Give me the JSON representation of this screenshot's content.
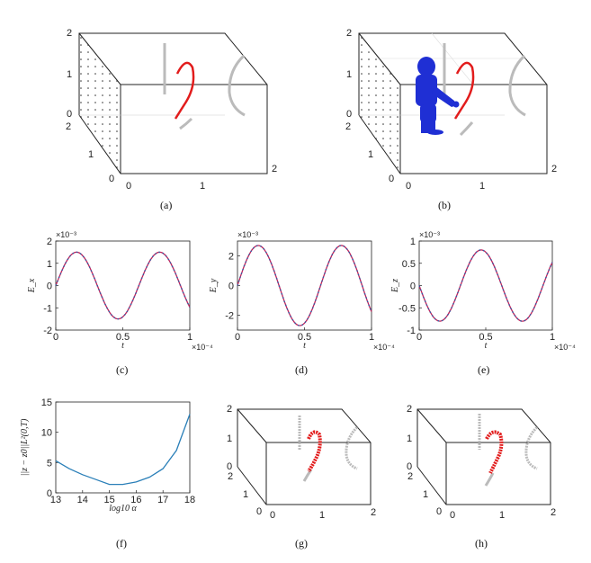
{
  "captions": [
    "(a)",
    "(b)",
    "(c)",
    "(d)",
    "(e)",
    "(f)",
    "(g)",
    "(h)"
  ],
  "box3d_ticks": {
    "z": [
      "0",
      "1",
      "2"
    ],
    "y": [
      "0",
      "1",
      "2"
    ],
    "x": [
      "0",
      "1",
      "2"
    ]
  },
  "chart_data": [
    {
      "id": "c",
      "type": "line",
      "ylabel": "E_x",
      "xlabel": "t",
      "x_exponent": "×10⁻⁴",
      "y_exponent": "×10⁻³",
      "xticks": [
        "0",
        "0.5",
        "1"
      ],
      "yticks": [
        "-2",
        "-1",
        "0",
        "1",
        "2"
      ],
      "xlim": [
        0,
        1
      ],
      "ylim": [
        -2,
        2
      ],
      "amplitude": 1.5,
      "period": 0.62,
      "phase": 0,
      "series": [
        {
          "color": "#2b5fa8",
          "style": "dotted"
        },
        {
          "color": "#c0245c",
          "style": "solid"
        }
      ]
    },
    {
      "id": "d",
      "type": "line",
      "ylabel": "E_y",
      "xlabel": "t",
      "x_exponent": "×10⁻⁴",
      "y_exponent": "×10⁻³",
      "xticks": [
        "0",
        "0.5",
        "1"
      ],
      "yticks": [
        "-2",
        "0",
        "2"
      ],
      "xlim": [
        0,
        1
      ],
      "ylim": [
        -3,
        3
      ],
      "amplitude": 2.7,
      "period": 0.62,
      "phase": 0,
      "series": [
        {
          "color": "#2b5fa8",
          "style": "dotted"
        },
        {
          "color": "#c0245c",
          "style": "solid"
        }
      ]
    },
    {
      "id": "e",
      "type": "line",
      "ylabel": "E_z",
      "xlabel": "t",
      "x_exponent": "×10⁻⁴",
      "y_exponent": "×10⁻³",
      "xticks": [
        "0",
        "0.5",
        "1"
      ],
      "yticks": [
        "-1",
        "-0.5",
        "0",
        "0.5",
        "1"
      ],
      "xlim": [
        0,
        1
      ],
      "ylim": [
        -1,
        1
      ],
      "amplitude": 0.8,
      "period": 0.62,
      "phase": 3.14159,
      "series": [
        {
          "color": "#2b5fa8",
          "style": "dotted"
        },
        {
          "color": "#c0245c",
          "style": "solid"
        }
      ]
    },
    {
      "id": "f",
      "type": "line",
      "ylabel": "||z − z0||L²(0,T)",
      "xlabel": "log10 α",
      "xticks": [
        "13",
        "14",
        "15",
        "16",
        "17",
        "18"
      ],
      "yticks": [
        "0",
        "5",
        "10",
        "15"
      ],
      "xlim": [
        13,
        18
      ],
      "ylim": [
        0,
        15
      ],
      "x": [
        13,
        13.5,
        14,
        14.5,
        15,
        15.5,
        16,
        16.5,
        17,
        17.5,
        18
      ],
      "y": [
        5.3,
        4.0,
        3.0,
        2.2,
        1.4,
        1.4,
        1.8,
        2.6,
        4.0,
        7.0,
        13.0
      ],
      "color": "#2a7fb8"
    }
  ]
}
